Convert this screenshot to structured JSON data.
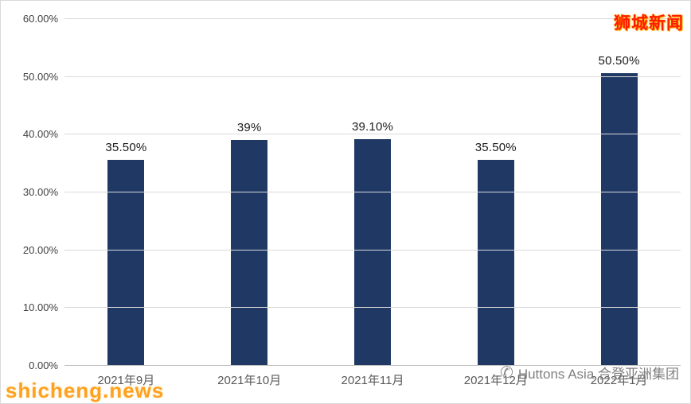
{
  "watermarks": {
    "top_right": "狮城新闻",
    "bottom_left": "shicheng.news"
  },
  "footer": {
    "right_text": "Huttons Asia 合登亚洲集团"
  },
  "chart_data": {
    "type": "bar",
    "title": "",
    "xlabel": "",
    "ylabel": "",
    "categories": [
      "2021年9月",
      "2021年10月",
      "2021年11月",
      "2021年12月",
      "2022年1月"
    ],
    "values": [
      35.5,
      39,
      39.1,
      35.5,
      50.5
    ],
    "data_labels": [
      "35.50%",
      "39%",
      "39.10%",
      "35.50%",
      "50.50%"
    ],
    "y_ticks": [
      "60.00%",
      "50.00%",
      "40.00%",
      "30.00%",
      "20.00%",
      "10.00%",
      "0.00%"
    ],
    "ylim": [
      0,
      60
    ],
    "grid": true,
    "legend": false,
    "bar_color": "#1F3864",
    "gridline_color": "#d9d9d9"
  }
}
